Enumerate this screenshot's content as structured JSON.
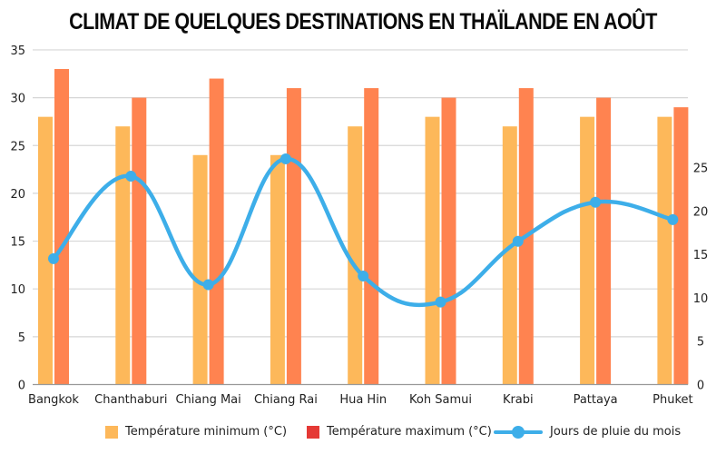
{
  "title": "CLIMAT DE QUELQUES DESTINATIONS EN THAÏLANDE EN AOÛT",
  "colors": {
    "min_bar": "#FDB85A",
    "max_bar": "#FF8350",
    "max_legend_swatch": "#E53935",
    "line": "#3DAEE9",
    "grid": "#D6D6D6",
    "axis": "#999999"
  },
  "legend": {
    "min_label": "Température minimum (°C)",
    "max_label": "Température maximum (°C)",
    "rain_label": "Jours de pluie du mois"
  },
  "chart_data": {
    "type": "bar",
    "title": "CLIMAT DE QUELQUES DESTINATIONS EN THAÏLANDE EN AOÛT",
    "xlabel": "",
    "ylabel": "",
    "categories": [
      "Bangkok",
      "Chanthaburi",
      "Chiang Mai",
      "Chiang Rai",
      "Hua Hin",
      "Koh Samui",
      "Krabi",
      "Pattaya",
      "Phuket"
    ],
    "series": [
      {
        "name": "Température minimum (°C)",
        "type": "bar",
        "axis": "left",
        "values": [
          28,
          27,
          24,
          24,
          27,
          28,
          27,
          28,
          28
        ]
      },
      {
        "name": "Température maximum (°C)",
        "type": "bar",
        "axis": "left",
        "values": [
          33,
          30,
          32,
          31,
          31,
          30,
          31,
          30,
          29
        ]
      },
      {
        "name": "Jours de pluie du mois",
        "type": "line",
        "axis": "right",
        "smooth": true,
        "values": [
          14.5,
          24,
          11.5,
          26,
          12.5,
          9.5,
          16.5,
          21,
          19
        ]
      }
    ],
    "ylim": [
      0,
      35
    ],
    "yticks_left": [
      0,
      5,
      10,
      15,
      20,
      25,
      30,
      35
    ],
    "yticks_right": [
      0,
      5,
      10,
      15,
      20,
      25
    ],
    "grid": true,
    "legend_position": "bottom"
  }
}
